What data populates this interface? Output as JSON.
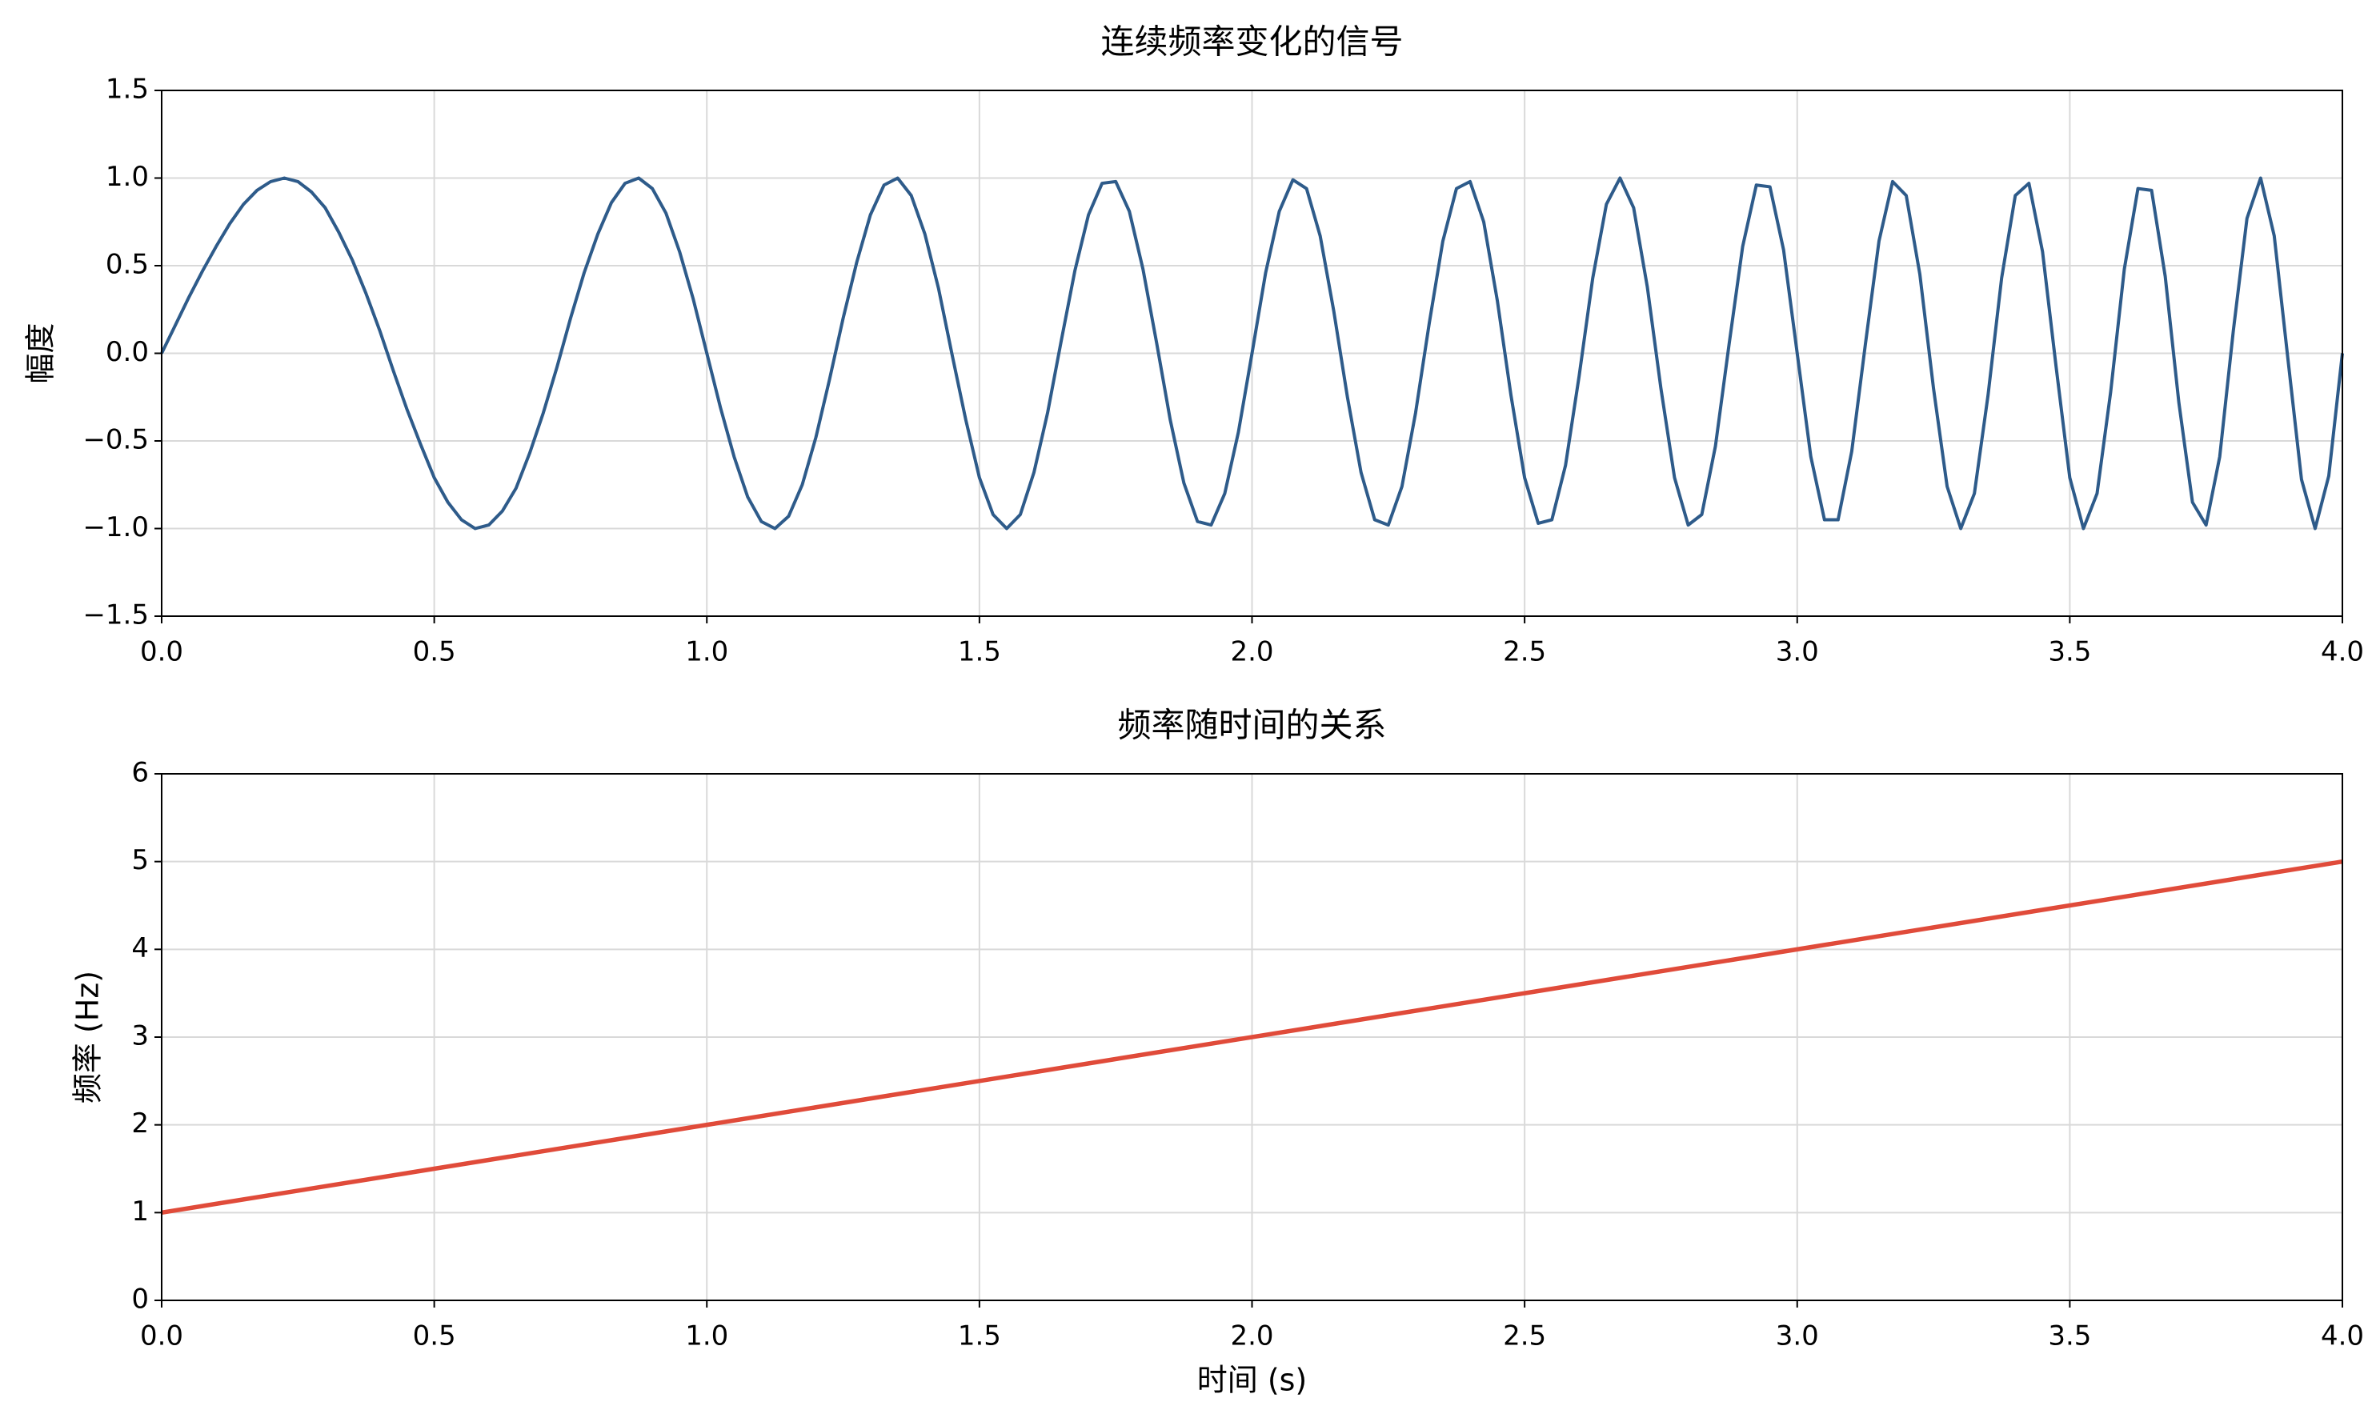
{
  "chart_data": [
    {
      "type": "line",
      "title": "连续频率变化的信号",
      "ylabel": "幅度",
      "x": [
        0,
        0.025,
        0.05,
        0.075,
        0.1,
        0.125,
        0.15,
        0.175,
        0.2,
        0.225,
        0.25,
        0.275,
        0.3,
        0.325,
        0.35,
        0.375,
        0.4,
        0.425,
        0.45,
        0.475,
        0.5,
        0.525,
        0.55,
        0.575,
        0.6,
        0.625,
        0.65,
        0.675,
        0.7,
        0.725,
        0.75,
        0.775,
        0.8,
        0.825,
        0.85,
        0.875,
        0.9,
        0.925,
        0.95,
        0.975,
        1,
        1.025,
        1.05,
        1.075,
        1.1,
        1.125,
        1.15,
        1.175,
        1.2,
        1.225,
        1.25,
        1.275,
        1.3,
        1.325,
        1.35,
        1.375,
        1.4,
        1.425,
        1.45,
        1.475,
        1.5,
        1.525,
        1.55,
        1.575,
        1.6,
        1.625,
        1.65,
        1.675,
        1.7,
        1.725,
        1.75,
        1.775,
        1.8,
        1.825,
        1.85,
        1.875,
        1.9,
        1.925,
        1.95,
        1.975,
        2,
        2.025,
        2.05,
        2.075,
        2.1,
        2.125,
        2.15,
        2.175,
        2.2,
        2.225,
        2.25,
        2.275,
        2.3,
        2.325,
        2.35,
        2.375,
        2.4,
        2.425,
        2.45,
        2.475,
        2.5,
        2.525,
        2.55,
        2.575,
        2.6,
        2.625,
        2.65,
        2.675,
        2.7,
        2.725,
        2.75,
        2.775,
        2.8,
        2.825,
        2.85,
        2.875,
        2.9,
        2.925,
        2.95,
        2.975,
        3,
        3.025,
        3.05,
        3.075,
        3.1,
        3.125,
        3.15,
        3.175,
        3.2,
        3.225,
        3.25,
        3.275,
        3.3,
        3.325,
        3.35,
        3.375,
        3.4,
        3.425,
        3.45,
        3.475,
        3.5,
        3.525,
        3.55,
        3.575,
        3.6,
        3.625,
        3.65,
        3.675,
        3.7,
        3.725,
        3.75,
        3.775,
        3.8,
        3.825,
        3.85,
        3.875,
        3.9,
        3.925,
        3.95,
        3.975,
        4
      ],
      "series": [
        {
          "color": "#2e5b8a",
          "values": [
            0,
            0.16,
            0.32,
            0.47,
            0.61,
            0.74,
            0.85,
            0.93,
            0.98,
            1.0,
            0.98,
            0.92,
            0.83,
            0.69,
            0.53,
            0.34,
            0.13,
            -0.1,
            -0.32,
            -0.52,
            -0.71,
            -0.85,
            -0.95,
            -1.0,
            -0.98,
            -0.9,
            -0.77,
            -0.57,
            -0.34,
            -0.08,
            0.2,
            0.46,
            0.68,
            0.86,
            0.97,
            1.0,
            0.94,
            0.8,
            0.58,
            0.31,
            0,
            -0.31,
            -0.59,
            -0.82,
            -0.96,
            -1.0,
            -0.93,
            -0.75,
            -0.48,
            -0.15,
            0.2,
            0.52,
            0.79,
            0.96,
            1.0,
            0.9,
            0.68,
            0.37,
            -0.01,
            -0.38,
            -0.71,
            -0.92,
            -1.0,
            -0.92,
            -0.68,
            -0.34,
            0.07,
            0.47,
            0.79,
            0.97,
            0.98,
            0.81,
            0.48,
            0.06,
            -0.38,
            -0.74,
            -0.96,
            -0.98,
            -0.8,
            -0.45,
            0,
            0.46,
            0.81,
            0.99,
            0.94,
            0.67,
            0.24,
            -0.25,
            -0.68,
            -0.95,
            -0.98,
            -0.76,
            -0.34,
            0.17,
            0.64,
            0.94,
            0.98,
            0.75,
            0.3,
            -0.24,
            -0.71,
            -0.97,
            -0.95,
            -0.64,
            -0.13,
            0.43,
            0.85,
            1.0,
            0.83,
            0.38,
            -0.2,
            -0.71,
            -0.98,
            -0.92,
            -0.53,
            0.05,
            0.61,
            0.96,
            0.95,
            0.59,
            0,
            -0.59,
            -0.95,
            -0.95,
            -0.56,
            0.05,
            0.64,
            0.98,
            0.9,
            0.45,
            -0.2,
            -0.76,
            -1.0,
            -0.8,
            -0.24,
            0.43,
            0.9,
            0.97,
            0.58,
            -0.08,
            -0.71,
            -1.0,
            -0.8,
            -0.22,
            0.48,
            0.94,
            0.93,
            0.44,
            -0.28,
            -0.85,
            -0.98,
            -0.59,
            0.13,
            0.77,
            1.0,
            0.67,
            -0.03,
            -0.72,
            -1.0,
            -0.7,
            0
          ]
        }
      ],
      "xlim": [
        0,
        4
      ],
      "ylim": [
        -1.5,
        1.5
      ],
      "xticks": [
        {
          "value": 0,
          "label": "0.0"
        },
        0.5,
        {
          "value": 1,
          "label": "1.0"
        },
        1.5,
        {
          "value": 2,
          "label": "2.0"
        },
        2.5,
        {
          "value": 3,
          "label": "3.0"
        },
        3.5,
        {
          "value": 4,
          "label": "4.0"
        }
      ],
      "yticks": [
        {
          "value": -1.5,
          "label": "−1.5"
        },
        {
          "value": -1,
          "label": "−1.0"
        },
        {
          "value": -0.5,
          "label": "−0.5"
        },
        {
          "value": 0,
          "label": "0.0"
        },
        0.5,
        {
          "value": 1,
          "label": "1.0"
        },
        1.5
      ],
      "grid": true
    },
    {
      "type": "line",
      "title": "频率随时间的关系",
      "xlabel": "时间 (s)",
      "ylabel": "频率 (Hz)",
      "x": [
        0,
        4
      ],
      "series": [
        {
          "color": "#e04b3a",
          "values": [
            1,
            5
          ]
        }
      ],
      "xlim": [
        0,
        4
      ],
      "ylim": [
        0,
        6
      ],
      "xticks": [
        {
          "value": 0,
          "label": "0.0"
        },
        0.5,
        {
          "value": 1,
          "label": "1.0"
        },
        1.5,
        {
          "value": 2,
          "label": "2.0"
        },
        2.5,
        {
          "value": 3,
          "label": "3.0"
        },
        3.5,
        {
          "value": 4,
          "label": "4.0"
        }
      ],
      "yticks": [
        0,
        1,
        2,
        3,
        4,
        5,
        6
      ],
      "grid": true
    }
  ]
}
